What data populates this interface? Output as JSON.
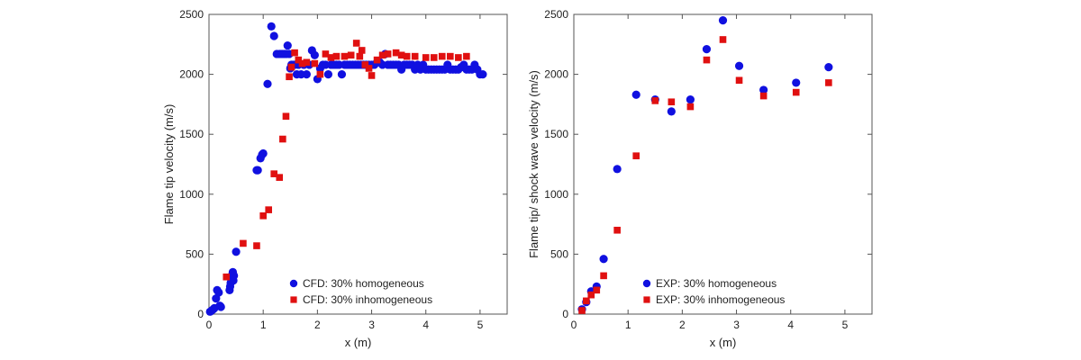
{
  "colors": {
    "homogeneous": "#1010e0",
    "inhomogeneous": "#e01010",
    "axis": "#555555"
  },
  "chart_data": [
    {
      "type": "scatter",
      "title": "",
      "xlabel": "x (m)",
      "ylabel": "Flame tip velocity (m/s)",
      "xlim": [
        0,
        5.5
      ],
      "ylim": [
        0,
        2500
      ],
      "xticks": [
        0,
        1,
        2,
        3,
        4,
        5
      ],
      "yticks": [
        0,
        500,
        1000,
        1500,
        2000,
        2500
      ],
      "grid": false,
      "legend_position": "bottom-center",
      "series": [
        {
          "name": "CFD: 30% homogeneous",
          "marker": "circle",
          "x": [
            0.02,
            0.05,
            0.08,
            0.1,
            0.13,
            0.15,
            0.18,
            0.2,
            0.22,
            0.38,
            0.39,
            0.4,
            0.41,
            0.42,
            0.43,
            0.44,
            0.45,
            0.46,
            0.5,
            0.88,
            0.9,
            0.95,
            0.98,
            1.0,
            1.08,
            1.15,
            1.2,
            1.25,
            1.3,
            1.33,
            1.36,
            1.39,
            1.42,
            1.45,
            1.48,
            1.5,
            1.52,
            1.55,
            1.58,
            1.62,
            1.65,
            1.7,
            1.75,
            1.8,
            1.85,
            1.9,
            1.95,
            2.0,
            2.05,
            2.1,
            2.15,
            2.2,
            2.25,
            2.3,
            2.35,
            2.4,
            2.45,
            2.5,
            2.55,
            2.6,
            2.65,
            2.7,
            2.75,
            2.8,
            2.85,
            2.9,
            2.95,
            3.0,
            3.05,
            3.1,
            3.15,
            3.2,
            3.25,
            3.3,
            3.35,
            3.4,
            3.45,
            3.5,
            3.55,
            3.6,
            3.65,
            3.7,
            3.75,
            3.8,
            3.85,
            3.9,
            3.95,
            4.0,
            4.05,
            4.1,
            4.15,
            4.2,
            4.25,
            4.3,
            4.35,
            4.4,
            4.45,
            4.5,
            4.55,
            4.6,
            4.65,
            4.7,
            4.75,
            4.8,
            4.85,
            4.9,
            4.95,
            5.0,
            5.05
          ],
          "y": [
            20,
            30,
            40,
            50,
            130,
            200,
            180,
            70,
            60,
            200,
            230,
            260,
            290,
            310,
            330,
            350,
            280,
            320,
            520,
            1200,
            1200,
            1300,
            1330,
            1340,
            1920,
            2400,
            2320,
            2170,
            2170,
            2170,
            2170,
            2170,
            2170,
            2240,
            2170,
            2050,
            2080,
            2080,
            2080,
            2000,
            2080,
            2000,
            2080,
            2000,
            2080,
            2200,
            2160,
            1960,
            2050,
            2080,
            2080,
            2000,
            2080,
            2080,
            2080,
            2080,
            2000,
            2080,
            2080,
            2080,
            2080,
            2080,
            2080,
            2080,
            2080,
            2080,
            2080,
            2080,
            2080,
            2100,
            2100,
            2080,
            2170,
            2080,
            2080,
            2080,
            2080,
            2080,
            2040,
            2080,
            2080,
            2080,
            2080,
            2040,
            2080,
            2040,
            2080,
            2040,
            2040,
            2040,
            2040,
            2040,
            2040,
            2040,
            2040,
            2080,
            2040,
            2040,
            2040,
            2040,
            2060,
            2080,
            2040,
            2040,
            2040,
            2080,
            2040,
            2000,
            2000
          ],
          "sort_values_note": ""
        },
        {
          "name": "CFD: 30% inhomogeneous",
          "marker": "square",
          "x": [
            0.32,
            0.63,
            0.88,
            1.0,
            1.1,
            1.2,
            1.3,
            1.36,
            1.42,
            1.48,
            1.52,
            1.58,
            1.65,
            1.72,
            1.8,
            1.95,
            2.05,
            2.15,
            2.25,
            2.35,
            2.5,
            2.62,
            2.72,
            2.78,
            2.82,
            2.88,
            2.95,
            3.0,
            3.1,
            3.2,
            3.3,
            3.45,
            3.55,
            3.65,
            3.8,
            4.0,
            4.15,
            4.3,
            4.45,
            4.6,
            4.75
          ],
          "y": [
            310,
            590,
            570,
            820,
            870,
            1170,
            1140,
            1460,
            1650,
            1980,
            2060,
            2180,
            2120,
            2090,
            2100,
            2090,
            2000,
            2170,
            2140,
            2150,
            2150,
            2160,
            2260,
            2150,
            2200,
            2080,
            2050,
            1990,
            2120,
            2160,
            2170,
            2180,
            2160,
            2150,
            2150,
            2140,
            2140,
            2150,
            2150,
            2140,
            2150
          ]
        }
      ]
    },
    {
      "type": "scatter",
      "title": "",
      "xlabel": "x (m)",
      "ylabel": "Flame tip/ shock wave velocity (m/s)",
      "xlim": [
        0,
        5.5
      ],
      "ylim": [
        0,
        2500
      ],
      "xticks": [
        0,
        1,
        2,
        3,
        4,
        5
      ],
      "yticks": [
        0,
        500,
        1000,
        1500,
        2000,
        2500
      ],
      "grid": false,
      "legend_position": "bottom-center",
      "series": [
        {
          "name": "EXP: 30% homogeneous",
          "marker": "circle",
          "x": [
            0.15,
            0.23,
            0.32,
            0.42,
            0.55,
            0.8,
            1.15,
            1.5,
            1.8,
            2.15,
            2.45,
            2.75,
            3.05,
            3.5,
            4.1,
            4.7
          ],
          "y": [
            40,
            100,
            190,
            230,
            460,
            1210,
            1830,
            1790,
            1690,
            1790,
            2210,
            2450,
            2070,
            1870,
            1930,
            2060
          ]
        },
        {
          "name": "EXP: 30% inhomogeneous",
          "marker": "square",
          "x": [
            0.15,
            0.23,
            0.32,
            0.42,
            0.55,
            0.8,
            1.15,
            1.5,
            1.8,
            2.15,
            2.45,
            2.75,
            3.05,
            3.5,
            4.1,
            4.7
          ],
          "y": [
            30,
            110,
            160,
            200,
            320,
            700,
            1320,
            1780,
            1770,
            1730,
            2120,
            2290,
            1950,
            1820,
            1850,
            1930
          ]
        }
      ]
    }
  ]
}
